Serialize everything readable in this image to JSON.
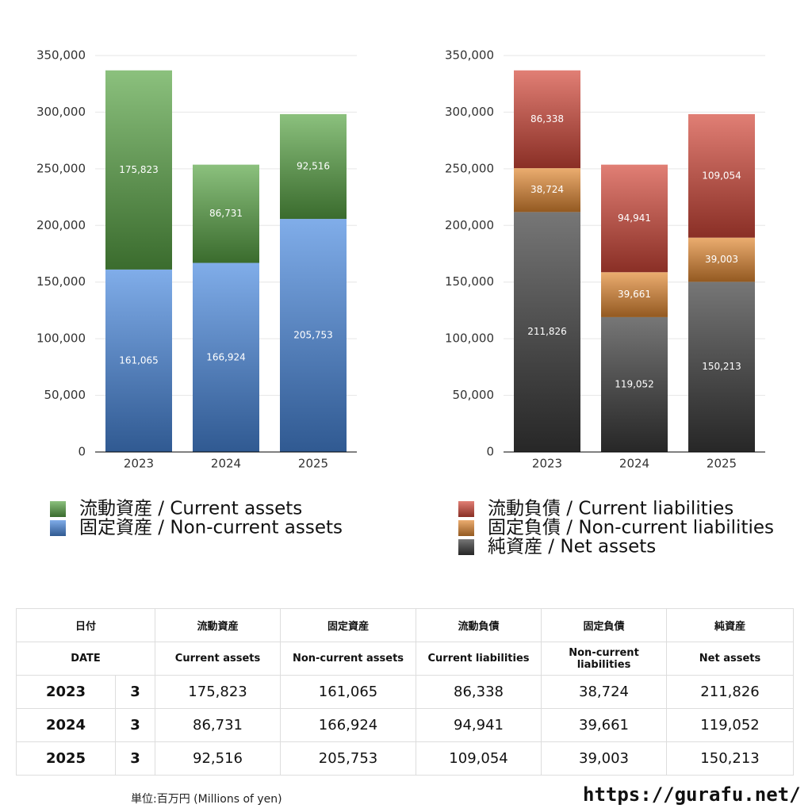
{
  "chart_data": [
    {
      "type": "bar",
      "stacked": true,
      "grid": true,
      "categories": [
        "2023",
        "2024",
        "2025"
      ],
      "series": [
        {
          "name": "流動資産 / Current assets",
          "color": "#5aa646",
          "values": [
            175823,
            86731,
            92516
          ],
          "value_labels": [
            "175,823",
            "86,731",
            "92,516"
          ]
        },
        {
          "name": "固定資産 / Non-current assets",
          "color": "#4a8ae0",
          "values": [
            161065,
            166924,
            205753
          ],
          "value_labels": [
            "161,065",
            "166,924",
            "205,753"
          ]
        }
      ],
      "ylim": [
        0,
        350000
      ],
      "yticks": [
        0,
        {
          "value": 50000,
          "label": "50,000"
        },
        {
          "value": 100000,
          "label": "100,000"
        },
        {
          "value": 150000,
          "label": "150,000"
        },
        {
          "value": 200000,
          "label": "200,000"
        },
        {
          "value": 250000,
          "label": "250,000"
        },
        {
          "value": 300000,
          "label": "300,000"
        },
        {
          "value": 350000,
          "label": "350,000"
        }
      ]
    },
    {
      "type": "bar",
      "stacked": true,
      "grid": true,
      "categories": [
        "2023",
        "2024",
        "2025"
      ],
      "series": [
        {
          "name": "流動負債 / Current liabilities",
          "color": "#d4483a",
          "values": [
            86338,
            94941,
            109054
          ],
          "value_labels": [
            "86,338",
            "94,941",
            "109,054"
          ]
        },
        {
          "name": "固定負債 / Non-current liabilities",
          "color": "#e38a32",
          "values": [
            38724,
            39661,
            39003
          ],
          "value_labels": [
            "38,724",
            "39,661",
            "39,003"
          ]
        },
        {
          "name": "純資産 / Net assets",
          "color": "#3c3c3c",
          "values": [
            211826,
            119052,
            150213
          ],
          "value_labels": [
            "211,826",
            "119,052",
            "150,213"
          ]
        }
      ],
      "ylim": [
        0,
        350000
      ],
      "yticks": [
        0,
        {
          "value": 50000,
          "label": "50,000"
        },
        {
          "value": 100000,
          "label": "100,000"
        },
        {
          "value": 150000,
          "label": "150,000"
        },
        {
          "value": 200000,
          "label": "200,000"
        },
        {
          "value": 250000,
          "label": "250,000"
        },
        {
          "value": 300000,
          "label": "300,000"
        },
        {
          "value": 350000,
          "label": "350,000"
        }
      ]
    }
  ],
  "table": {
    "header": [
      [
        "日付",
        "流動資産",
        "固定資産",
        "流動負債",
        "固定負債",
        "純資産"
      ],
      [
        "DATE",
        "Current assets",
        "Non-current assets",
        "Current liabilities",
        "Non-current liabilities",
        "Net assets"
      ]
    ],
    "rows": [
      [
        "2023",
        "3",
        "175,823",
        "161,065",
        "86,338",
        "38,724",
        "211,826"
      ],
      [
        "2024",
        "3",
        "86,731",
        "166,924",
        "94,941",
        "39,661",
        "119,052"
      ],
      [
        "2025",
        "3",
        "92,516",
        "205,753",
        "109,054",
        "39,003",
        "150,213"
      ]
    ]
  },
  "footer": {
    "unit": "単位:百万円 (Millions of yen)",
    "url": "https://gurafu.net/"
  }
}
